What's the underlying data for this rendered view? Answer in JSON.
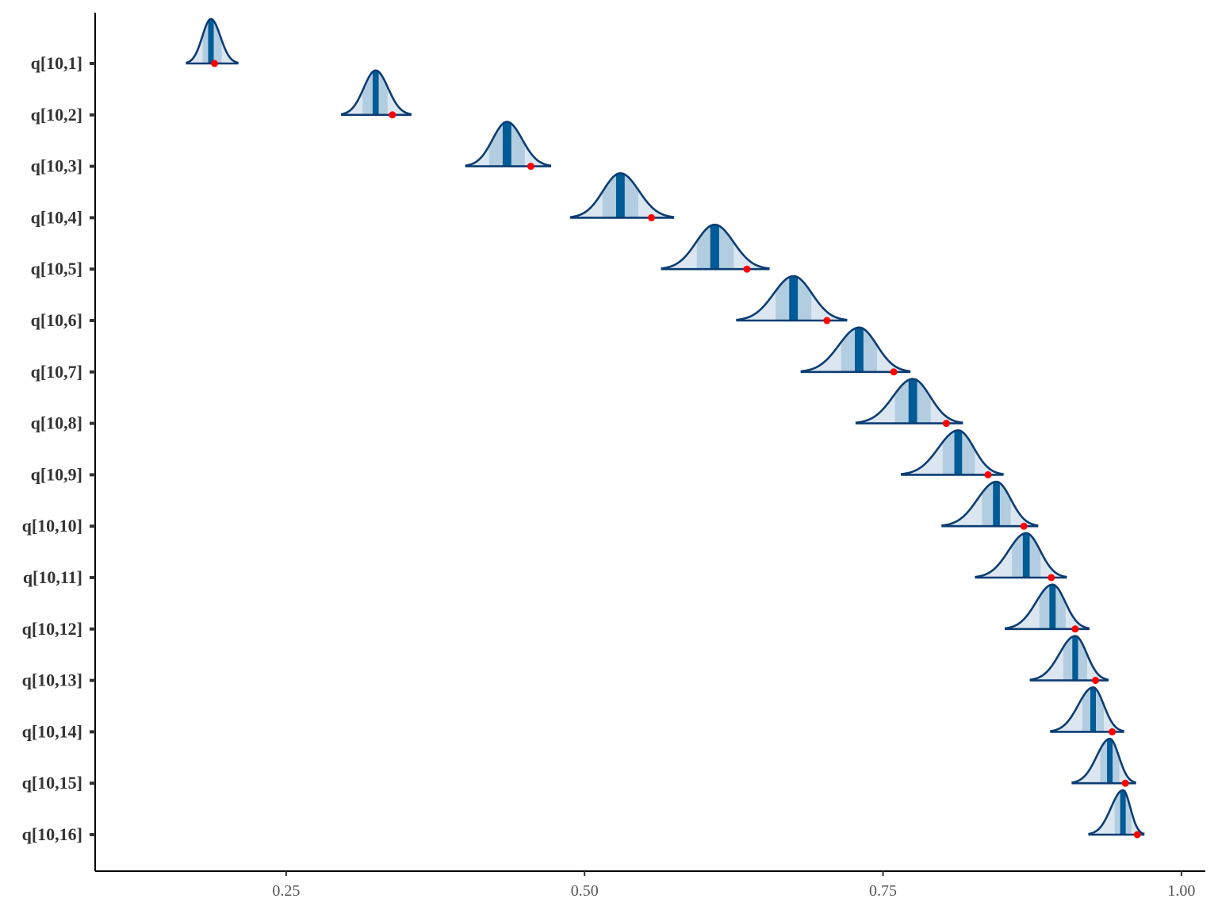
{
  "chart_data": {
    "type": "ridgeline",
    "title": "",
    "xlabel": "",
    "ylabel": "",
    "xlim": [
      0.09,
      1.02
    ],
    "grid": false,
    "legend": "none",
    "x_ticks": [
      0.25,
      0.5,
      0.75,
      1.0
    ],
    "x_tick_labels": [
      "0.25",
      "0.50",
      "0.75",
      "1.00"
    ],
    "colors": {
      "outline": "#0b3d73",
      "median": "#005b96",
      "inner_interval": "#b3cde0",
      "outer_interval": "#dbe6f0",
      "point": "#ff0000",
      "axis": "#000000"
    },
    "series": [
      {
        "label": "q[10,1]",
        "median": 0.187,
        "inner": [
          0.18,
          0.196
        ],
        "outer": [
          0.17,
          0.205
        ],
        "range": [
          0.166,
          0.21
        ],
        "point": 0.19
      },
      {
        "label": "q[10,2]",
        "median": 0.325,
        "inner": [
          0.314,
          0.335
        ],
        "outer": [
          0.3,
          0.35
        ],
        "range": [
          0.296,
          0.355
        ],
        "point": 0.339
      },
      {
        "label": "q[10,3]",
        "median": 0.435,
        "inner": [
          0.42,
          0.45
        ],
        "outer": [
          0.405,
          0.468
        ],
        "range": [
          0.4,
          0.472
        ],
        "point": 0.455
      },
      {
        "label": "q[10,4]",
        "median": 0.53,
        "inner": [
          0.515,
          0.545
        ],
        "outer": [
          0.493,
          0.57
        ],
        "range": [
          0.488,
          0.575
        ],
        "point": 0.556
      },
      {
        "label": "q[10,5]",
        "median": 0.609,
        "inner": [
          0.594,
          0.625
        ],
        "outer": [
          0.57,
          0.65
        ],
        "range": [
          0.564,
          0.655
        ],
        "point": 0.636
      },
      {
        "label": "q[10,6]",
        "median": 0.675,
        "inner": [
          0.66,
          0.69
        ],
        "outer": [
          0.632,
          0.715
        ],
        "range": [
          0.627,
          0.72
        ],
        "point": 0.703
      },
      {
        "label": "q[10,7]",
        "median": 0.73,
        "inner": [
          0.715,
          0.745
        ],
        "outer": [
          0.686,
          0.768
        ],
        "range": [
          0.681,
          0.773
        ],
        "point": 0.759
      },
      {
        "label": "q[10,8]",
        "median": 0.775,
        "inner": [
          0.76,
          0.79
        ],
        "outer": [
          0.732,
          0.812
        ],
        "range": [
          0.727,
          0.817
        ],
        "point": 0.803
      },
      {
        "label": "q[10,9]",
        "median": 0.813,
        "inner": [
          0.8,
          0.827
        ],
        "outer": [
          0.77,
          0.846
        ],
        "range": [
          0.765,
          0.851
        ],
        "point": 0.838
      },
      {
        "label": "q[10,10]",
        "median": 0.845,
        "inner": [
          0.833,
          0.857
        ],
        "outer": [
          0.804,
          0.875
        ],
        "range": [
          0.799,
          0.88
        ],
        "point": 0.868
      },
      {
        "label": "q[10,11]",
        "median": 0.87,
        "inner": [
          0.858,
          0.882
        ],
        "outer": [
          0.832,
          0.899
        ],
        "range": [
          0.827,
          0.904
        ],
        "point": 0.891
      },
      {
        "label": "q[10,12]",
        "median": 0.892,
        "inner": [
          0.881,
          0.903
        ],
        "outer": [
          0.857,
          0.918
        ],
        "range": [
          0.852,
          0.923
        ],
        "point": 0.911
      },
      {
        "label": "q[10,13]",
        "median": 0.911,
        "inner": [
          0.901,
          0.921
        ],
        "outer": [
          0.878,
          0.934
        ],
        "range": [
          0.873,
          0.939
        ],
        "point": 0.928
      },
      {
        "label": "q[10,14]",
        "median": 0.926,
        "inner": [
          0.917,
          0.935
        ],
        "outer": [
          0.895,
          0.947
        ],
        "range": [
          0.89,
          0.952
        ],
        "point": 0.942
      },
      {
        "label": "q[10,15]",
        "median": 0.94,
        "inner": [
          0.932,
          0.948
        ],
        "outer": [
          0.913,
          0.957
        ],
        "range": [
          0.908,
          0.962
        ],
        "point": 0.953
      },
      {
        "label": "q[10,16]",
        "median": 0.951,
        "inner": [
          0.944,
          0.958
        ],
        "outer": [
          0.927,
          0.964
        ],
        "range": [
          0.922,
          0.969
        ],
        "point": 0.963
      }
    ]
  }
}
